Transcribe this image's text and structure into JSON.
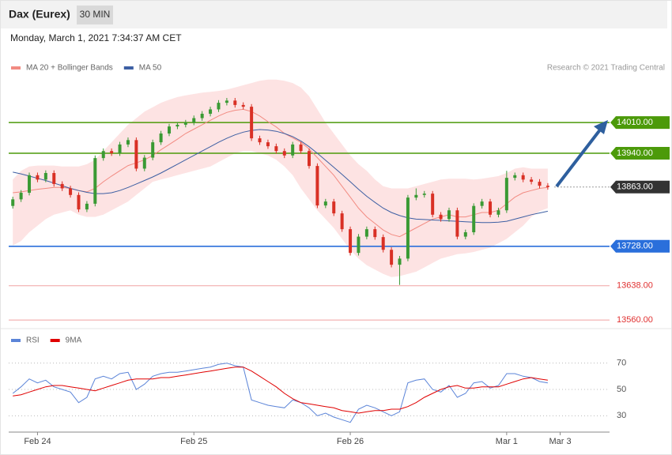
{
  "header": {
    "instrument": "Dax (Eurex)",
    "timeframe": "30 MIN",
    "timestamp": "Monday, March 1, 2021 7:34:37 AM CET"
  },
  "chart_data": [
    {
      "type": "candlestick",
      "source": "Research © 2021 Trading Central",
      "xlim": [
        -0.5,
        72.5
      ],
      "xticks": [
        {
          "value": 3,
          "label": "Feb 24"
        },
        {
          "value": 22,
          "label": "Feb 25"
        },
        {
          "value": 41,
          "label": "Feb 26"
        },
        {
          "value": 60,
          "label": "Mar 1"
        },
        {
          "value": 66.5,
          "label": "Mar 3"
        }
      ],
      "ylim": [
        13550,
        14120
      ],
      "up_color": "#3a9a34",
      "down_color": "#d93025",
      "open": [
        13820,
        13835,
        13850,
        13890,
        13880,
        13895,
        13870,
        13860,
        13845,
        13812,
        13825,
        13929,
        13945,
        13940,
        13960,
        13970,
        13905,
        13930,
        13965,
        13985,
        14001,
        14005,
        14010,
        14020,
        14030,
        14040,
        14055,
        14060,
        14050,
        14046,
        13974,
        13965,
        13956,
        13945,
        13935,
        13960,
        13945,
        13911,
        13821,
        13830,
        13803,
        13767,
        13713,
        13750,
        13767,
        13749,
        13720,
        13686,
        13700,
        13839,
        13845,
        13848,
        13800,
        13790,
        13810,
        13750,
        13760,
        13820,
        13830,
        13800,
        13810,
        13884,
        13890,
        13880,
        13875,
        13866
      ],
      "high": [
        13841,
        13856,
        13896,
        13896,
        13901,
        13901,
        13876,
        13866,
        13851,
        13831,
        13935,
        13951,
        13951,
        13966,
        13976,
        13976,
        13936,
        13971,
        13991,
        14007,
        14011,
        14016,
        14026,
        14036,
        14046,
        14061,
        14066,
        14066,
        14056,
        14052,
        13980,
        13971,
        13962,
        13951,
        13966,
        13966,
        13951,
        13917,
        13836,
        13836,
        13809,
        13773,
        13756,
        13773,
        13773,
        13755,
        13726,
        13706,
        13845,
        13860,
        13854,
        13854,
        13806,
        13816,
        13816,
        13766,
        13826,
        13836,
        13836,
        13816,
        13900,
        13896,
        13896,
        13886,
        13881,
        13872
      ],
      "low": [
        13814,
        13829,
        13844,
        13874,
        13874,
        13864,
        13854,
        13839,
        13806,
        13806,
        13819,
        13923,
        13934,
        13934,
        13954,
        13899,
        13899,
        13924,
        13959,
        13979,
        13995,
        13999,
        14004,
        14014,
        14024,
        14034,
        14049,
        14044,
        14040,
        13968,
        13959,
        13950,
        13939,
        13929,
        13929,
        13939,
        13905,
        13815,
        13815,
        13797,
        13761,
        13707,
        13707,
        13744,
        13743,
        13714,
        13680,
        13640,
        13694,
        13833,
        13839,
        13794,
        13784,
        13784,
        13744,
        13744,
        13754,
        13814,
        13794,
        13794,
        13804,
        13878,
        13874,
        13869,
        13860,
        13857
      ],
      "close": [
        13835,
        13850,
        13890,
        13880,
        13895,
        13870,
        13860,
        13845,
        13812,
        13825,
        13929,
        13945,
        13940,
        13960,
        13970,
        13905,
        13930,
        13965,
        13985,
        14001,
        14005,
        14010,
        14020,
        14030,
        14040,
        14055,
        14060,
        14050,
        14046,
        13974,
        13965,
        13956,
        13945,
        13935,
        13960,
        13945,
        13911,
        13821,
        13830,
        13803,
        13767,
        13713,
        13750,
        13767,
        13749,
        13720,
        13686,
        13700,
        13839,
        13845,
        13848,
        13800,
        13790,
        13810,
        13750,
        13760,
        13820,
        13830,
        13800,
        13810,
        13884,
        13890,
        13880,
        13875,
        13866,
        13863
      ],
      "series": [
        {
          "name": "MA 20 + Bollinger Bands",
          "color": "#f28b82",
          "band_color": "#fde3e3",
          "values": [
            13850,
            13852,
            13855,
            13858,
            13860,
            13862,
            13862,
            13860,
            13855,
            13852,
            13860,
            13875,
            13888,
            13900,
            13912,
            13918,
            13925,
            13935,
            13948,
            13960,
            13972,
            13985,
            13995,
            14005,
            14015,
            14025,
            14033,
            14038,
            14040,
            14035,
            14025,
            14012,
            14000,
            13985,
            13975,
            13965,
            13950,
            13930,
            13910,
            13890,
            13865,
            13840,
            13815,
            13795,
            13780,
            13765,
            13755,
            13750,
            13760,
            13770,
            13780,
            13790,
            13795,
            13800,
            13795,
            13795,
            13800,
            13805,
            13805,
            13810,
            13825,
            13840,
            13850,
            13855,
            13860,
            13862
          ],
          "upper": [
            13880,
            13900,
            13910,
            13912,
            13912,
            13912,
            13910,
            13910,
            13910,
            13915,
            13925,
            13945,
            13965,
            13985,
            14005,
            14020,
            14035,
            14045,
            14055,
            14062,
            14068,
            14072,
            14075,
            14078,
            14080,
            14082,
            14085,
            14090,
            14095,
            14100,
            14105,
            14108,
            14108,
            14105,
            14100,
            14090,
            14070,
            14040,
            14010,
            13985,
            13960,
            13935,
            13915,
            13900,
            13880,
            13865,
            13860,
            13860,
            13860,
            13865,
            13870,
            13875,
            13880,
            13882,
            13882,
            13882,
            13880,
            13882,
            13885,
            13888,
            13895,
            13905,
            13908,
            13905,
            13905,
            13905
          ],
          "lower": [
            13730,
            13740,
            13760,
            13775,
            13790,
            13800,
            13805,
            13810,
            13800,
            13795,
            13795,
            13800,
            13810,
            13820,
            13830,
            13845,
            13860,
            13875,
            13880,
            13885,
            13890,
            13895,
            13900,
            13905,
            13910,
            13920,
            13930,
            13940,
            13945,
            13945,
            13940,
            13935,
            13925,
            13910,
            13890,
            13860,
            13835,
            13810,
            13790,
            13770,
            13745,
            13720,
            13700,
            13685,
            13675,
            13665,
            13658,
            13660,
            13665,
            13670,
            13680,
            13690,
            13700,
            13705,
            13710,
            13712,
            13715,
            13720,
            13725,
            13735,
            13745,
            13760,
            13775,
            13795,
            13808,
            13815
          ]
        },
        {
          "name": "MA 50",
          "color": "#3d5fa3",
          "values": [
            13897,
            13893,
            13888,
            13883,
            13878,
            13872,
            13866,
            13860,
            13855,
            13851,
            13848,
            13848,
            13850,
            13855,
            13862,
            13870,
            13878,
            13886,
            13895,
            13905,
            13915,
            13925,
            13935,
            13945,
            13955,
            13965,
            13974,
            13982,
            13988,
            13992,
            13994,
            13993,
            13990,
            13985,
            13978,
            13968,
            13955,
            13940,
            13924,
            13908,
            13892,
            13875,
            13858,
            13842,
            13828,
            13815,
            13805,
            13798,
            13793,
            13790,
            13789,
            13788,
            13787,
            13786,
            13785,
            13784,
            13783,
            13782,
            13782,
            13783,
            13785,
            13790,
            13795,
            13800,
            13804,
            13808
          ]
        }
      ],
      "levels": [
        {
          "value": 14010,
          "label": "14010.00",
          "color": "#4c9a0a",
          "style": "box"
        },
        {
          "value": 13940,
          "label": "13940.00",
          "color": "#4c9a0a",
          "style": "box"
        },
        {
          "value": 13863,
          "label": "13863.00",
          "color": "#333333",
          "style": "current"
        },
        {
          "value": 13728,
          "label": "13728.00",
          "color": "#2a6fdb",
          "style": "box"
        },
        {
          "value": 13638,
          "label": "13638.00",
          "color": "#e03030",
          "style": "text"
        },
        {
          "value": 13560,
          "label": "13560.00",
          "color": "#e03030",
          "style": "text"
        }
      ]
    },
    {
      "type": "line",
      "xlim": [
        -0.5,
        72.5
      ],
      "ylim": [
        20,
        80
      ],
      "yticks": [
        30,
        50,
        70
      ],
      "grid": true,
      "series": [
        {
          "name": "RSI",
          "color": "#5b84d8",
          "values": [
            47,
            52,
            58,
            55,
            57,
            52,
            50,
            48,
            40,
            44,
            58,
            60,
            58,
            62,
            63,
            50,
            54,
            60,
            62,
            63,
            63,
            64,
            65,
            66,
            67,
            69,
            70,
            68,
            67,
            42,
            40,
            38,
            37,
            36,
            42,
            40,
            36,
            30,
            32,
            29,
            27,
            25,
            35,
            38,
            36,
            33,
            30,
            33,
            55,
            57,
            58,
            50,
            48,
            53,
            44,
            47,
            55,
            56,
            51,
            53,
            62,
            62,
            60,
            59,
            56,
            55
          ]
        },
        {
          "name": "9MA",
          "color": "#e00000",
          "values": [
            45,
            46,
            48,
            50,
            52,
            53,
            53,
            52,
            51,
            50,
            49,
            51,
            53,
            55,
            57,
            58,
            58,
            58,
            59,
            59,
            60,
            61,
            62,
            63,
            64,
            65,
            66,
            67,
            67,
            64,
            60,
            56,
            52,
            47,
            43,
            40,
            39,
            38,
            37,
            36,
            34,
            33,
            32,
            33,
            34,
            34,
            35,
            35,
            37,
            40,
            44,
            47,
            50,
            52,
            53,
            51,
            51,
            52,
            52,
            52,
            54,
            56,
            58,
            59,
            58,
            57
          ]
        }
      ]
    }
  ]
}
